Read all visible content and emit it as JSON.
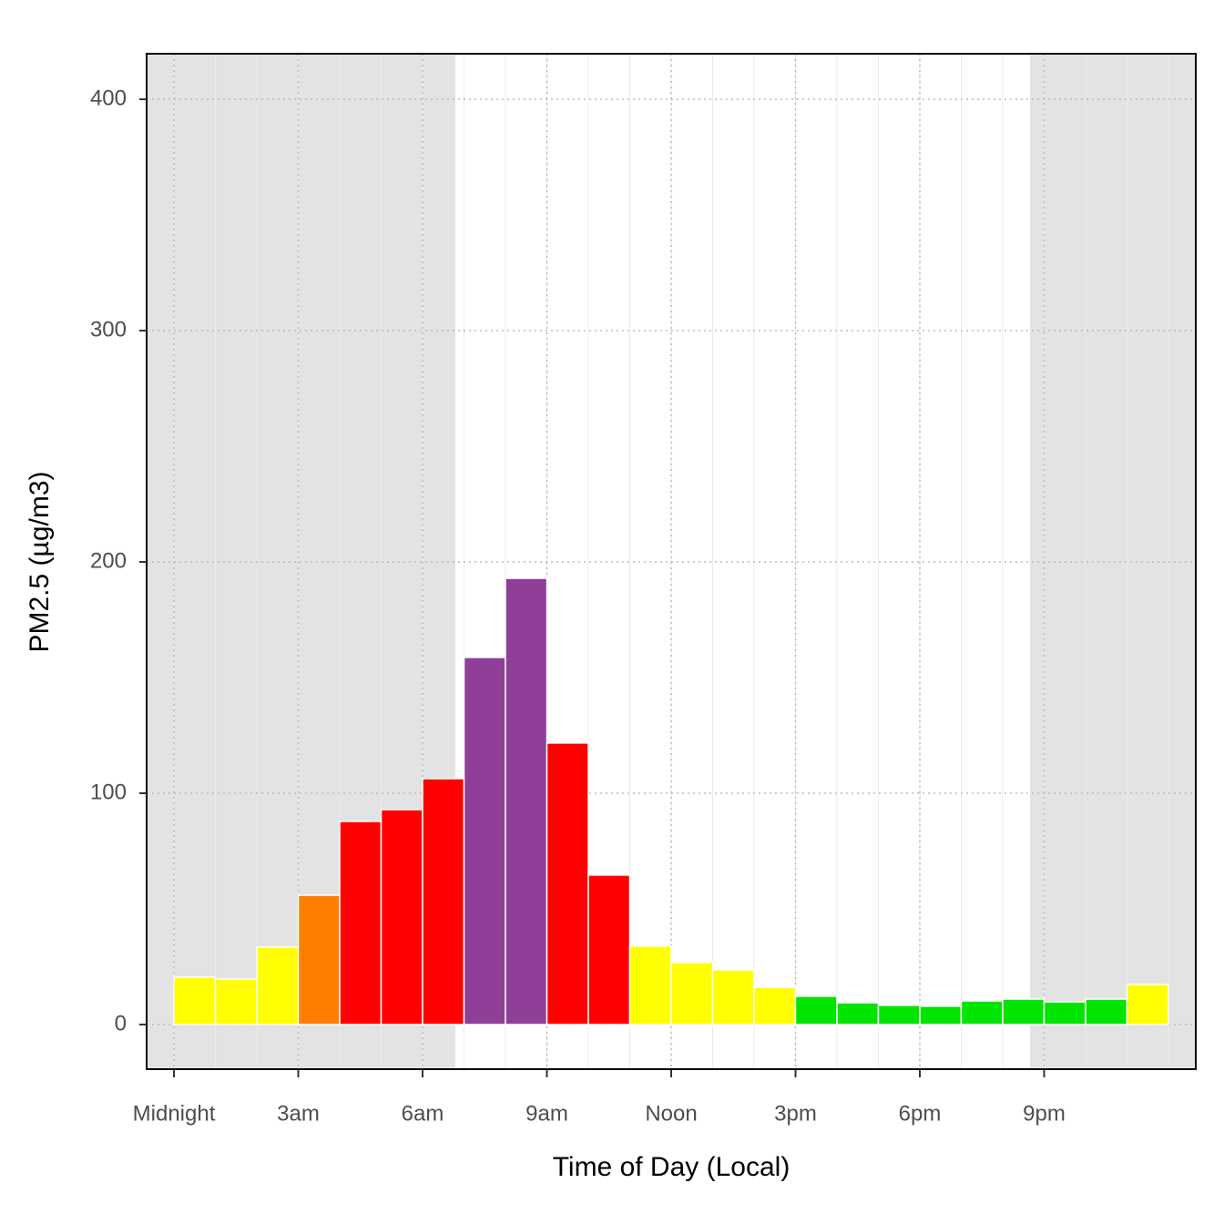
{
  "chart_data": {
    "type": "histogram",
    "x_label": "Time of Day (Local)",
    "y_label": "PM2.5 (µg/m3)",
    "bins": [
      0,
      1,
      2,
      3,
      4,
      5,
      6,
      7,
      8,
      9,
      10,
      11,
      12,
      13,
      14,
      15,
      16,
      17,
      18,
      19,
      20,
      21,
      22,
      23,
      24
    ],
    "values": [
      20.5,
      19.7,
      33.5,
      55.9,
      87.8,
      92.9,
      106.3,
      158.7,
      192.9,
      121.7,
      64.6,
      33.9,
      26.8,
      23.6,
      16.1,
      12.2,
      9.4,
      8.3,
      7.9,
      10.2,
      11.0,
      9.8,
      11.0,
      17.3
    ],
    "colors": [
      "#ffff00",
      "#ffff00",
      "#ffff00",
      "#ff7e00",
      "#ff0000",
      "#ff0000",
      "#ff0000",
      "#8f3f97",
      "#8f3f97",
      "#ff0000",
      "#ff0000",
      "#ffff00",
      "#ffff00",
      "#ffff00",
      "#ffff00",
      "#00e400",
      "#00e400",
      "#00e400",
      "#00e400",
      "#00e400",
      "#00e400",
      "#00e400",
      "#00e400",
      "#ffff00"
    ],
    "xlim": [
      -0.66,
      24.66
    ],
    "ylim": [
      -19.3,
      419.7
    ],
    "xticks": [
      {
        "value": 0,
        "label": "Midnight"
      },
      {
        "value": 3,
        "label": "3am"
      },
      {
        "value": 6,
        "label": "6am"
      },
      {
        "value": 9,
        "label": "9am"
      },
      {
        "value": 12,
        "label": "Noon"
      },
      {
        "value": 15,
        "label": "3pm"
      },
      {
        "value": 18,
        "label": "6pm"
      },
      {
        "value": 21,
        "label": "9pm"
      }
    ],
    "yticks": [
      0,
      100,
      200,
      300,
      400
    ],
    "sunrise": 6.79,
    "sunset": 20.66,
    "night_color": "#e3e3e3",
    "grid": true
  }
}
